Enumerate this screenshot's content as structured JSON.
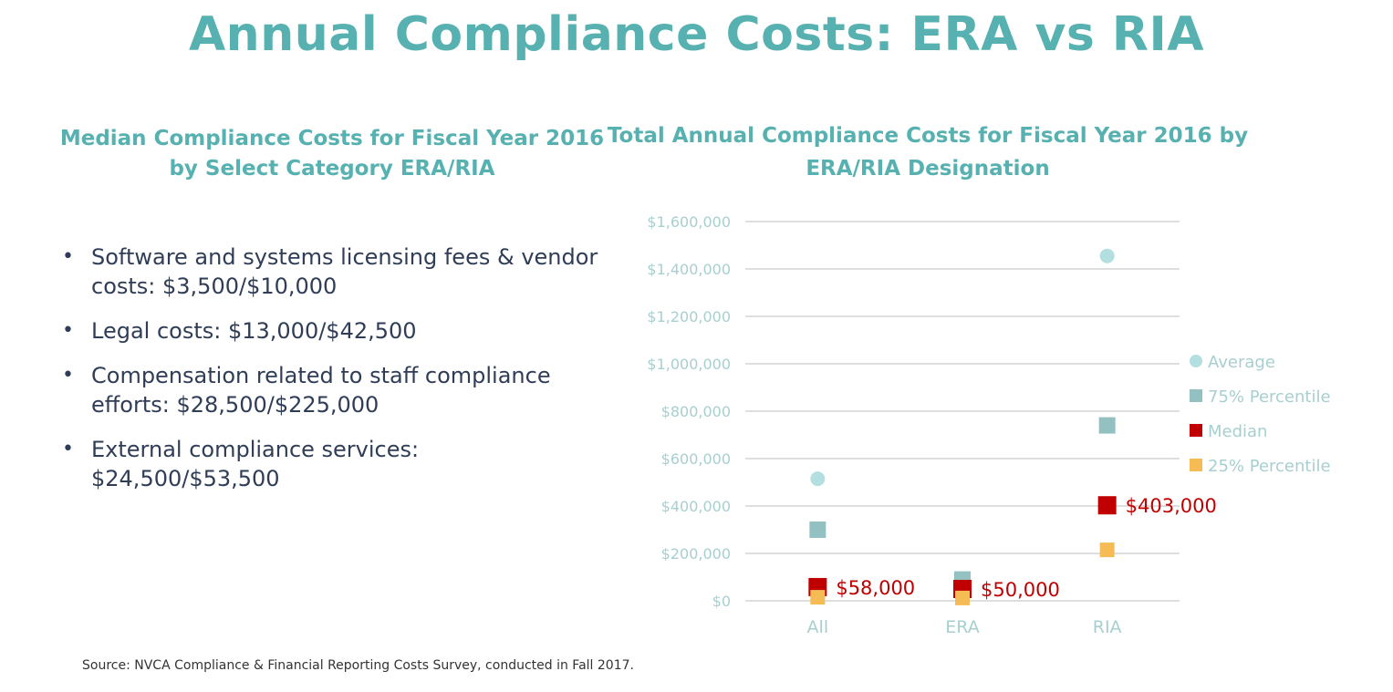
{
  "page": {
    "title": "Annual Compliance Costs: ERA vs RIA",
    "source": "Source: NVCA Compliance & Financial Reporting Costs Survey, conducted in Fall 2017."
  },
  "left_panel": {
    "title_line1": "Median Compliance Costs for Fiscal Year 2016",
    "title_line2": "by Select Category ERA/RIA",
    "bullets": [
      {
        "line1": "Software and systems licensing fees & vendor",
        "line2": "costs: $3,500/$10,000"
      },
      {
        "line1": "Legal costs: $13,000/$42,500",
        "line2": ""
      },
      {
        "line1": "Compensation related to staff compliance",
        "line2": "efforts: $28,500/$225,000"
      },
      {
        "line1": "External compliance services:",
        "line2": "$24,500/$53,500"
      }
    ]
  },
  "colors": {
    "title": "#56b1b0",
    "average": "#b3dfe0",
    "p75": "#93c1c2",
    "median": "#c00000",
    "p25": "#f5bb55",
    "axis_text": "#a8cfd0",
    "grid": "#d4d4d4",
    "data_label": "#c00000"
  },
  "chart_data": {
    "type": "scatter",
    "title": "Total Annual Compliance Costs for Fiscal Year 2016 by ERA/RIA Designation",
    "title_line1": "Total Annual Compliance Costs for Fiscal Year 2016 by",
    "title_line2": "ERA/RIA Designation",
    "categories": [
      "All",
      "ERA",
      "RIA"
    ],
    "ylim": [
      0,
      1600000
    ],
    "yticks": [
      0,
      200000,
      400000,
      600000,
      800000,
      1000000,
      1200000,
      1400000,
      1600000
    ],
    "ytick_labels": [
      "$0",
      "$200,000",
      "$400,000",
      "$600,000",
      "$800,000",
      "$1,000,000",
      "$1,200,000",
      "$1,400,000",
      "$1,600,000"
    ],
    "legend_position": "right",
    "series": [
      {
        "name": "Average",
        "marker": "circle",
        "values": [
          515000,
          80000,
          1455000
        ]
      },
      {
        "name": "75% Percentile",
        "marker": "square",
        "values": [
          300000,
          90000,
          740000
        ]
      },
      {
        "name": "Median",
        "marker": "square",
        "values": [
          58000,
          50000,
          403000
        ],
        "data_labels": [
          "$58,000",
          "$50,000",
          "$403,000"
        ]
      },
      {
        "name": "25% Percentile",
        "marker": "square",
        "values": [
          15000,
          12000,
          215000
        ]
      }
    ]
  }
}
